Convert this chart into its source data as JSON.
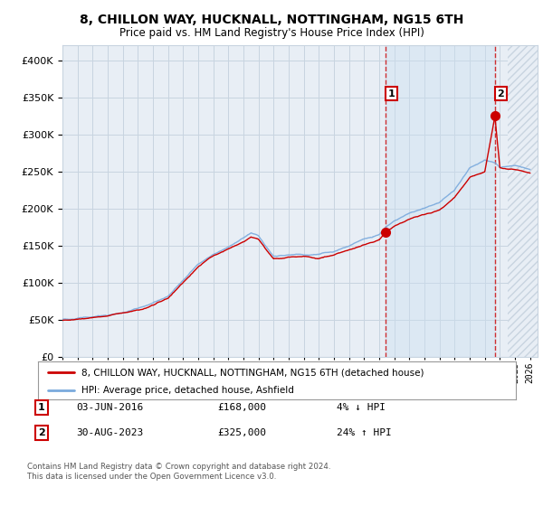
{
  "title1": "8, CHILLON WAY, HUCKNALL, NOTTINGHAM, NG15 6TH",
  "title2": "Price paid vs. HM Land Registry's House Price Index (HPI)",
  "legend_line1": "8, CHILLON WAY, HUCKNALL, NOTTINGHAM, NG15 6TH (detached house)",
  "legend_line2": "HPI: Average price, detached house, Ashfield",
  "annotation1_label": "1",
  "annotation1_date": "03-JUN-2016",
  "annotation1_price": "£168,000",
  "annotation1_hpi": "4% ↓ HPI",
  "annotation1_year": 2016.42,
  "annotation1_value": 168000,
  "annotation2_label": "2",
  "annotation2_date": "30-AUG-2023",
  "annotation2_price": "£325,000",
  "annotation2_hpi": "24% ↑ HPI",
  "annotation2_year": 2023.67,
  "annotation2_value": 325000,
  "hpi_color": "#7aaadd",
  "price_color": "#cc0000",
  "bg_color": "#e8eef5",
  "grid_color": "#c8d4e0",
  "ylim": [
    0,
    420000
  ],
  "xlim_start": 1995.0,
  "xlim_end": 2026.5,
  "footer": "Contains HM Land Registry data © Crown copyright and database right 2024.\nThis data is licensed under the Open Government Licence v3.0."
}
